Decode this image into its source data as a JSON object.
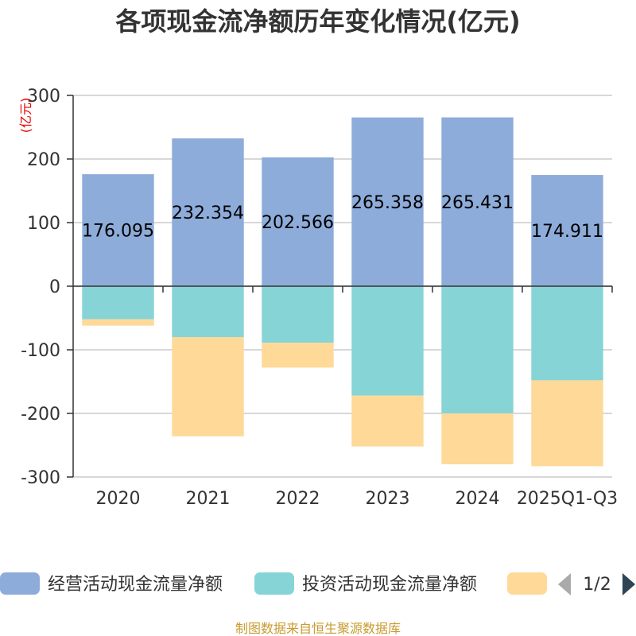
{
  "chart_data": {
    "type": "bar",
    "stacked": true,
    "title": "各项现金流净额历年变化情况(亿元)",
    "ylabel": "(亿元)",
    "xlabel": "",
    "ylim": [
      -300,
      300
    ],
    "yticks": [
      300,
      200,
      100,
      0,
      -100,
      -200,
      -300
    ],
    "categories": [
      "2020",
      "2021",
      "2022",
      "2023",
      "2024",
      "2025Q1-Q3"
    ],
    "series": [
      {
        "name": "经营活动现金流量净额",
        "color": "#8eacda",
        "values": [
          176.095,
          232.354,
          202.566,
          265.358,
          265.431,
          174.911
        ],
        "labels": [
          "176.095",
          "232.354",
          "202.566",
          "265.358",
          "265.431",
          "174.911"
        ]
      },
      {
        "name": "投资活动现金流量净额",
        "color": "#86d4d6",
        "values": [
          -52,
          -80,
          -89,
          -172,
          -200,
          -148
        ]
      },
      {
        "name": "",
        "color": "#fed998",
        "values": [
          -10,
          -156,
          -39,
          -80,
          -80,
          -135
        ]
      }
    ]
  },
  "legend": {
    "items": [
      {
        "label": "经营活动现金流量净额",
        "color": "#8eacda"
      },
      {
        "label": "投资活动现金流量净额",
        "color": "#86d4d6"
      },
      {
        "label": "",
        "color": "#fed998"
      }
    ],
    "pager": "1/2"
  },
  "source": "制图数据来自恒生聚源数据库"
}
